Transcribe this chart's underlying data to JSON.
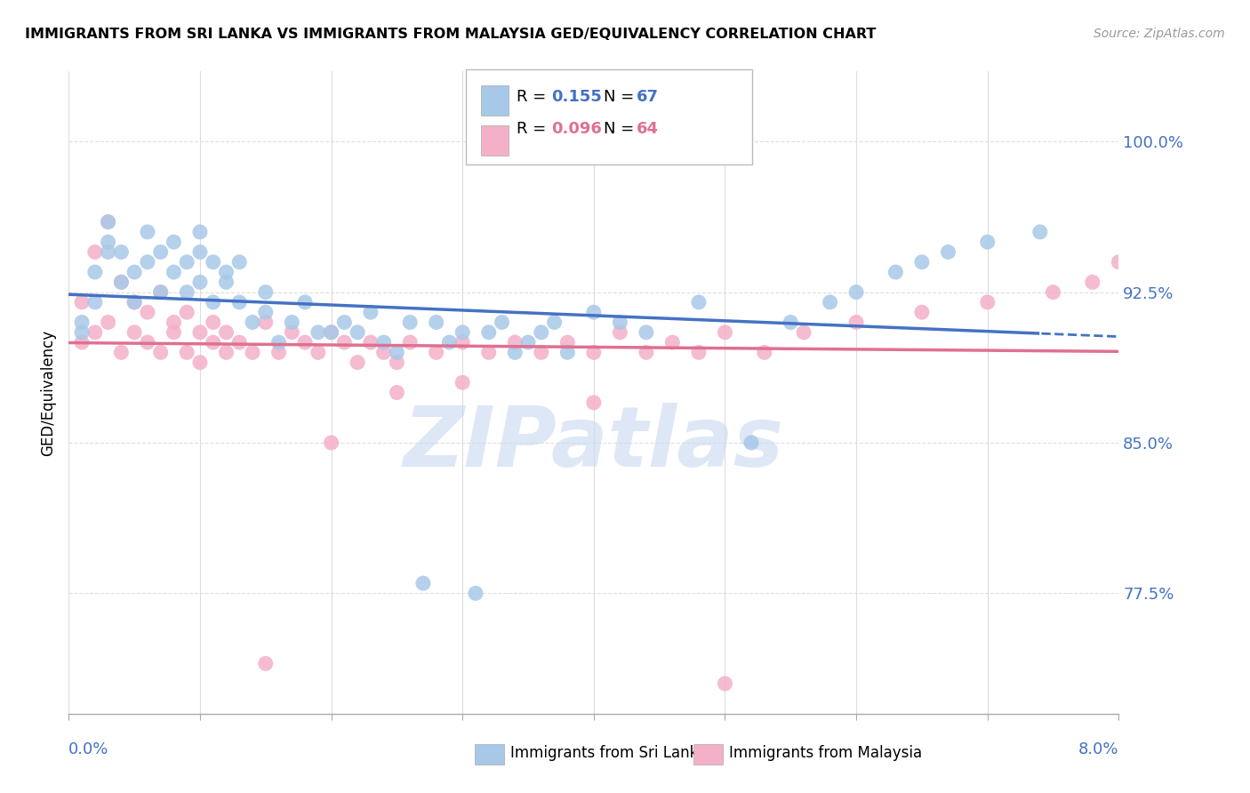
{
  "title": "IMMIGRANTS FROM SRI LANKA VS IMMIGRANTS FROM MALAYSIA GED/EQUIVALENCY CORRELATION CHART",
  "source": "Source: ZipAtlas.com",
  "ylabel": "GED/Equivalency",
  "xlim": [
    0.0,
    0.08
  ],
  "ylim": [
    0.715,
    1.035
  ],
  "yticks": [
    0.775,
    0.85,
    0.925,
    1.0
  ],
  "ytick_labels": [
    "77.5%",
    "85.0%",
    "92.5%",
    "100.0%"
  ],
  "xtick_edge_left": "0.0%",
  "xtick_edge_right": "8.0%",
  "sri_lanka_color": "#a8c8e8",
  "malaysia_color": "#f4b0c8",
  "sri_lanka_line_color": "#4472c4",
  "malaysia_line_color": "#e07090",
  "legend_r1": "0.155",
  "legend_n1": "67",
  "legend_r2": "0.096",
  "legend_n2": "64",
  "watermark_text": "ZIPatlas",
  "watermark_color": "#c8d8f0",
  "legend_label1": "Immigrants from Sri Lanka",
  "legend_label2": "Immigrants from Malaysia",
  "sl_x": [
    0.001,
    0.001,
    0.002,
    0.002,
    0.003,
    0.003,
    0.003,
    0.004,
    0.004,
    0.005,
    0.005,
    0.006,
    0.006,
    0.007,
    0.007,
    0.008,
    0.008,
    0.009,
    0.009,
    0.01,
    0.01,
    0.01,
    0.011,
    0.011,
    0.012,
    0.012,
    0.013,
    0.013,
    0.014,
    0.015,
    0.015,
    0.016,
    0.017,
    0.018,
    0.019,
    0.02,
    0.021,
    0.022,
    0.023,
    0.024,
    0.025,
    0.026,
    0.027,
    0.028,
    0.029,
    0.03,
    0.031,
    0.032,
    0.033,
    0.034,
    0.035,
    0.036,
    0.037,
    0.038,
    0.04,
    0.042,
    0.044,
    0.048,
    0.052,
    0.055,
    0.058,
    0.06,
    0.063,
    0.065,
    0.067,
    0.07,
    0.074
  ],
  "sl_y": [
    0.905,
    0.91,
    0.92,
    0.935,
    0.95,
    0.945,
    0.96,
    0.93,
    0.945,
    0.92,
    0.935,
    0.94,
    0.955,
    0.925,
    0.945,
    0.935,
    0.95,
    0.94,
    0.925,
    0.93,
    0.945,
    0.955,
    0.92,
    0.94,
    0.93,
    0.935,
    0.92,
    0.94,
    0.91,
    0.925,
    0.915,
    0.9,
    0.91,
    0.92,
    0.905,
    0.905,
    0.91,
    0.905,
    0.915,
    0.9,
    0.895,
    0.91,
    0.78,
    0.91,
    0.9,
    0.905,
    0.775,
    0.905,
    0.91,
    0.895,
    0.9,
    0.905,
    0.91,
    0.895,
    0.915,
    0.91,
    0.905,
    0.92,
    0.85,
    0.91,
    0.92,
    0.925,
    0.935,
    0.94,
    0.945,
    0.95,
    0.955
  ],
  "ml_x": [
    0.001,
    0.001,
    0.002,
    0.002,
    0.003,
    0.003,
    0.004,
    0.004,
    0.005,
    0.005,
    0.006,
    0.006,
    0.007,
    0.007,
    0.008,
    0.008,
    0.009,
    0.009,
    0.01,
    0.01,
    0.011,
    0.011,
    0.012,
    0.012,
    0.013,
    0.014,
    0.015,
    0.016,
    0.017,
    0.018,
    0.019,
    0.02,
    0.021,
    0.022,
    0.023,
    0.024,
    0.025,
    0.026,
    0.028,
    0.03,
    0.032,
    0.034,
    0.036,
    0.038,
    0.04,
    0.042,
    0.044,
    0.046,
    0.048,
    0.05,
    0.053,
    0.056,
    0.06,
    0.065,
    0.07,
    0.075,
    0.078,
    0.08,
    0.015,
    0.02,
    0.025,
    0.03,
    0.04,
    0.05
  ],
  "ml_y": [
    0.9,
    0.92,
    0.905,
    0.945,
    0.91,
    0.96,
    0.895,
    0.93,
    0.905,
    0.92,
    0.9,
    0.915,
    0.895,
    0.925,
    0.91,
    0.905,
    0.895,
    0.915,
    0.905,
    0.89,
    0.9,
    0.91,
    0.895,
    0.905,
    0.9,
    0.895,
    0.91,
    0.895,
    0.905,
    0.9,
    0.895,
    0.905,
    0.9,
    0.89,
    0.9,
    0.895,
    0.89,
    0.9,
    0.895,
    0.9,
    0.895,
    0.9,
    0.895,
    0.9,
    0.895,
    0.905,
    0.895,
    0.9,
    0.895,
    0.905,
    0.895,
    0.905,
    0.91,
    0.915,
    0.92,
    0.925,
    0.93,
    0.94,
    0.74,
    0.85,
    0.875,
    0.88,
    0.87,
    0.73
  ]
}
